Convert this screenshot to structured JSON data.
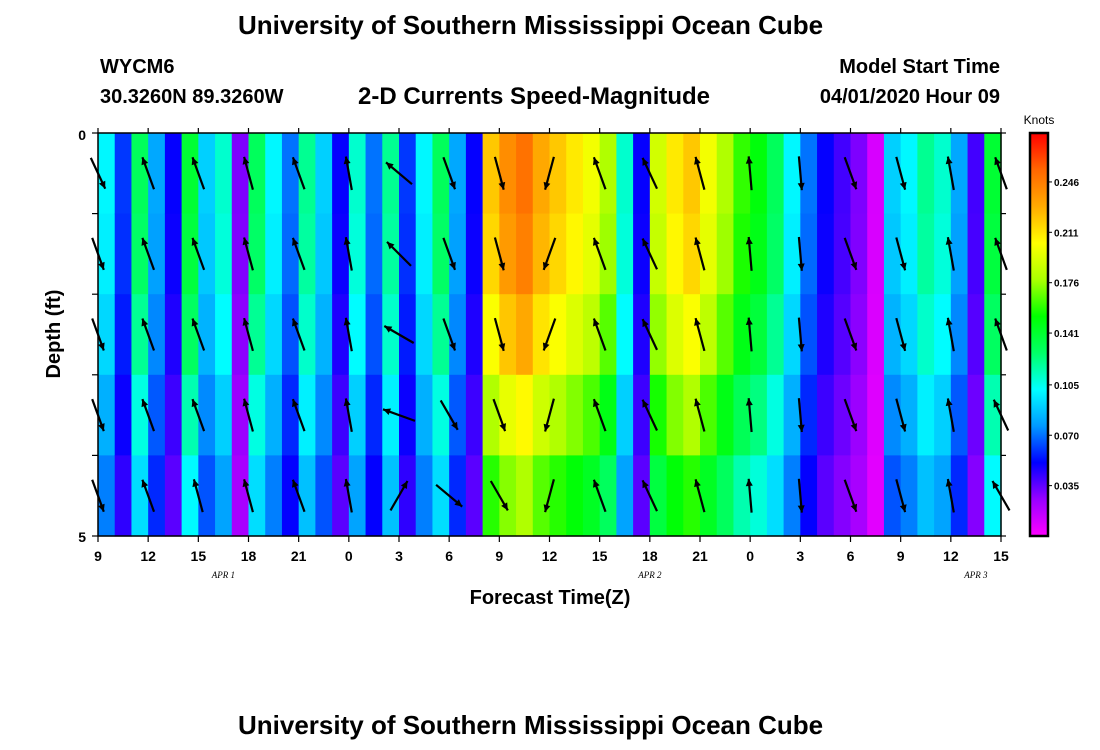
{
  "header": {
    "title": "University of Southern Mississippi Ocean Cube",
    "station": "WYCM6",
    "coords": "30.3260N 89.3260W",
    "subtitle": "2-D Currents Speed-Magnitude",
    "model_start_label": "Model Start Time",
    "model_start_value": "04/01/2020 Hour 09"
  },
  "footer": {
    "title": "University of Southern Mississippi Ocean Cube"
  },
  "chart_data": {
    "type": "heatmap",
    "xlabel": "Forecast Time(Z)",
    "ylabel": "Depth (ft)",
    "x_ticks": [
      "9",
      "12",
      "15",
      "18",
      "21",
      "0",
      "3",
      "6",
      "9",
      "12",
      "15",
      "18",
      "21",
      "0",
      "3",
      "6",
      "9",
      "12",
      "15"
    ],
    "y_ticks": [
      "0",
      "5"
    ],
    "y_range": [
      0,
      5
    ],
    "date_labels": [
      {
        "label": "APR 1",
        "at_tick": 2.5
      },
      {
        "label": "APR 2",
        "at_tick": 11
      },
      {
        "label": "APR 3",
        "at_tick": 17.5
      }
    ],
    "colorbar": {
      "unit": "Knots",
      "ticks": [
        "0.246",
        "0.211",
        "0.176",
        "0.141",
        "0.105",
        "0.070",
        "0.035"
      ],
      "tick_values": [
        0.246,
        0.211,
        0.176,
        0.141,
        0.105,
        0.07,
        0.035
      ],
      "range": [
        0.0,
        0.28
      ],
      "colors": [
        "#ff00ff",
        "#9900ff",
        "#0000ff",
        "#0099ff",
        "#00ffff",
        "#00ff66",
        "#00ff00",
        "#aaff00",
        "#ffff00",
        "#ffaa00",
        "#ff6600",
        "#ff0000"
      ]
    },
    "hours": 54,
    "depth_levels": 5,
    "speed_knots": [
      0.1,
      0.06,
      0.13,
      0.08,
      0.05,
      0.14,
      0.09,
      0.11,
      0.03,
      0.13,
      0.1,
      0.07,
      0.12,
      0.09,
      0.05,
      0.11,
      0.07,
      0.12,
      0.06,
      0.1,
      0.13,
      0.08,
      0.05,
      0.22,
      0.24,
      0.25,
      0.23,
      0.22,
      0.21,
      0.2,
      0.18,
      0.11,
      0.05,
      0.19,
      0.21,
      0.22,
      0.2,
      0.18,
      0.16,
      0.15,
      0.13,
      0.1,
      0.07,
      0.05,
      0.04,
      0.03,
      0.01,
      0.09,
      0.1,
      0.12,
      0.11,
      0.08,
      0.04,
      0.14
    ],
    "depth_factor": [
      1.0,
      0.98,
      0.92,
      0.82,
      0.72
    ],
    "arrow_dirs_deg": [
      [
        155,
        160,
        160,
        160,
        160
      ],
      [
        -20,
        -20,
        -20,
        -20,
        -20
      ],
      [
        -20,
        -20,
        -20,
        -20,
        -15
      ],
      [
        -15,
        -15,
        -15,
        -15,
        -15
      ],
      [
        -20,
        -20,
        -20,
        -20,
        -20
      ],
      [
        -10,
        -10,
        -10,
        -10,
        -10
      ],
      [
        -50,
        -45,
        -60,
        -70,
        30
      ],
      [
        160,
        160,
        160,
        150,
        130
      ],
      [
        165,
        165,
        165,
        160,
        150
      ],
      [
        195,
        200,
        200,
        195,
        195
      ],
      [
        -20,
        -20,
        -20,
        -20,
        -20
      ],
      [
        -25,
        -25,
        -25,
        -25,
        -25
      ],
      [
        -15,
        -15,
        -15,
        -15,
        -15
      ],
      [
        -5,
        -5,
        -5,
        -5,
        -5
      ],
      [
        175,
        175,
        175,
        175,
        175
      ],
      [
        160,
        160,
        160,
        160,
        160
      ],
      [
        165,
        165,
        165,
        165,
        165
      ],
      [
        -10,
        -10,
        -10,
        -10,
        -10
      ],
      [
        -20,
        -20,
        -20,
        -25,
        -30
      ]
    ]
  }
}
